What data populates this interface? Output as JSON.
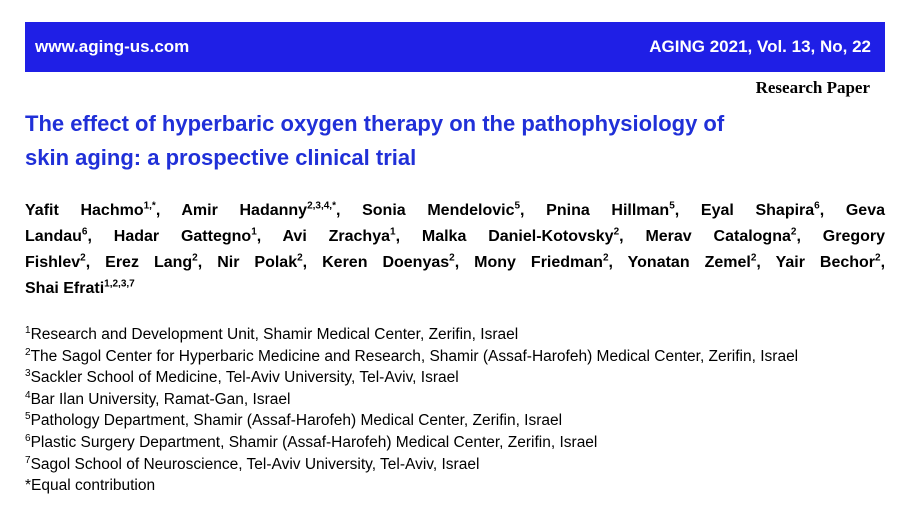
{
  "header": {
    "site": "www.aging-us.com",
    "journal": "AGING 2021, Vol. 13, No, 22",
    "article_type": "Research Paper"
  },
  "title": [
    "The effect of hyperbaric oxygen therapy on the pathophysiology of",
    "skin aging: a prospective clinical trial"
  ],
  "author_lines": [
    [
      {
        "name": "Yafit Hachmo",
        "sup": "1,*",
        "sep": ","
      },
      {
        "name": "Amir Hadanny",
        "sup": "2,3,4,*",
        "sep": ","
      },
      {
        "name": "Sonia Mendelovic",
        "sup": "5",
        "sep": ","
      },
      {
        "name": "Pnina Hillman",
        "sup": "5",
        "sep": ","
      },
      {
        "name": "Eyal Shapira",
        "sup": "6",
        "sep": ","
      },
      {
        "name": "Geva"
      }
    ],
    [
      {
        "name": "Landau",
        "sup": "6",
        "sep": ","
      },
      {
        "name": "Hadar Gattegno",
        "sup": "1",
        "sep": ","
      },
      {
        "name": "Avi Zrachya",
        "sup": "1",
        "sep": ","
      },
      {
        "name": "Malka Daniel-Kotovsky",
        "sup": "2",
        "sep": ","
      },
      {
        "name": "Merav Catalogna",
        "sup": "2",
        "sep": ","
      },
      {
        "name": "Gregory"
      }
    ],
    [
      {
        "name": "Fishlev",
        "sup": "2",
        "sep": ","
      },
      {
        "name": "Erez Lang",
        "sup": "2",
        "sep": ","
      },
      {
        "name": "Nir Polak",
        "sup": "2",
        "sep": ","
      },
      {
        "name": "Keren Doenyas",
        "sup": "2",
        "sep": ","
      },
      {
        "name": "Mony Friedman",
        "sup": "2",
        "sep": ","
      },
      {
        "name": "Yonatan Zemel",
        "sup": "2",
        "sep": ","
      },
      {
        "name": "Yair Bechor",
        "sup": "2",
        "sep": ","
      }
    ],
    [
      {
        "name": "Shai Efrati",
        "sup": "1,2,3,7"
      }
    ]
  ],
  "affiliations": [
    {
      "sup": "1",
      "text": "Research and Development Unit, Shamir Medical Center, Zerifin, Israel"
    },
    {
      "sup": "2",
      "text": "The Sagol Center for Hyperbaric Medicine and Research, Shamir (Assaf-Harofeh) Medical Center, Zerifin, Israel"
    },
    {
      "sup": "3",
      "text": "Sackler School of Medicine, Tel-Aviv University, Tel-Aviv, Israel"
    },
    {
      "sup": "4",
      "text": "Bar Ilan University, Ramat-Gan, Israel"
    },
    {
      "sup": "5",
      "text": "Pathology Department, Shamir (Assaf-Harofeh) Medical Center, Zerifin, Israel"
    },
    {
      "sup": "6",
      "text": "Plastic Surgery Department, Shamir (Assaf-Harofeh) Medical Center, Zerifin, Israel"
    },
    {
      "sup": "7",
      "text": "Sagol School of Neuroscience, Tel-Aviv University, Tel-Aviv, Israel"
    }
  ],
  "footnote": "*Equal contribution"
}
